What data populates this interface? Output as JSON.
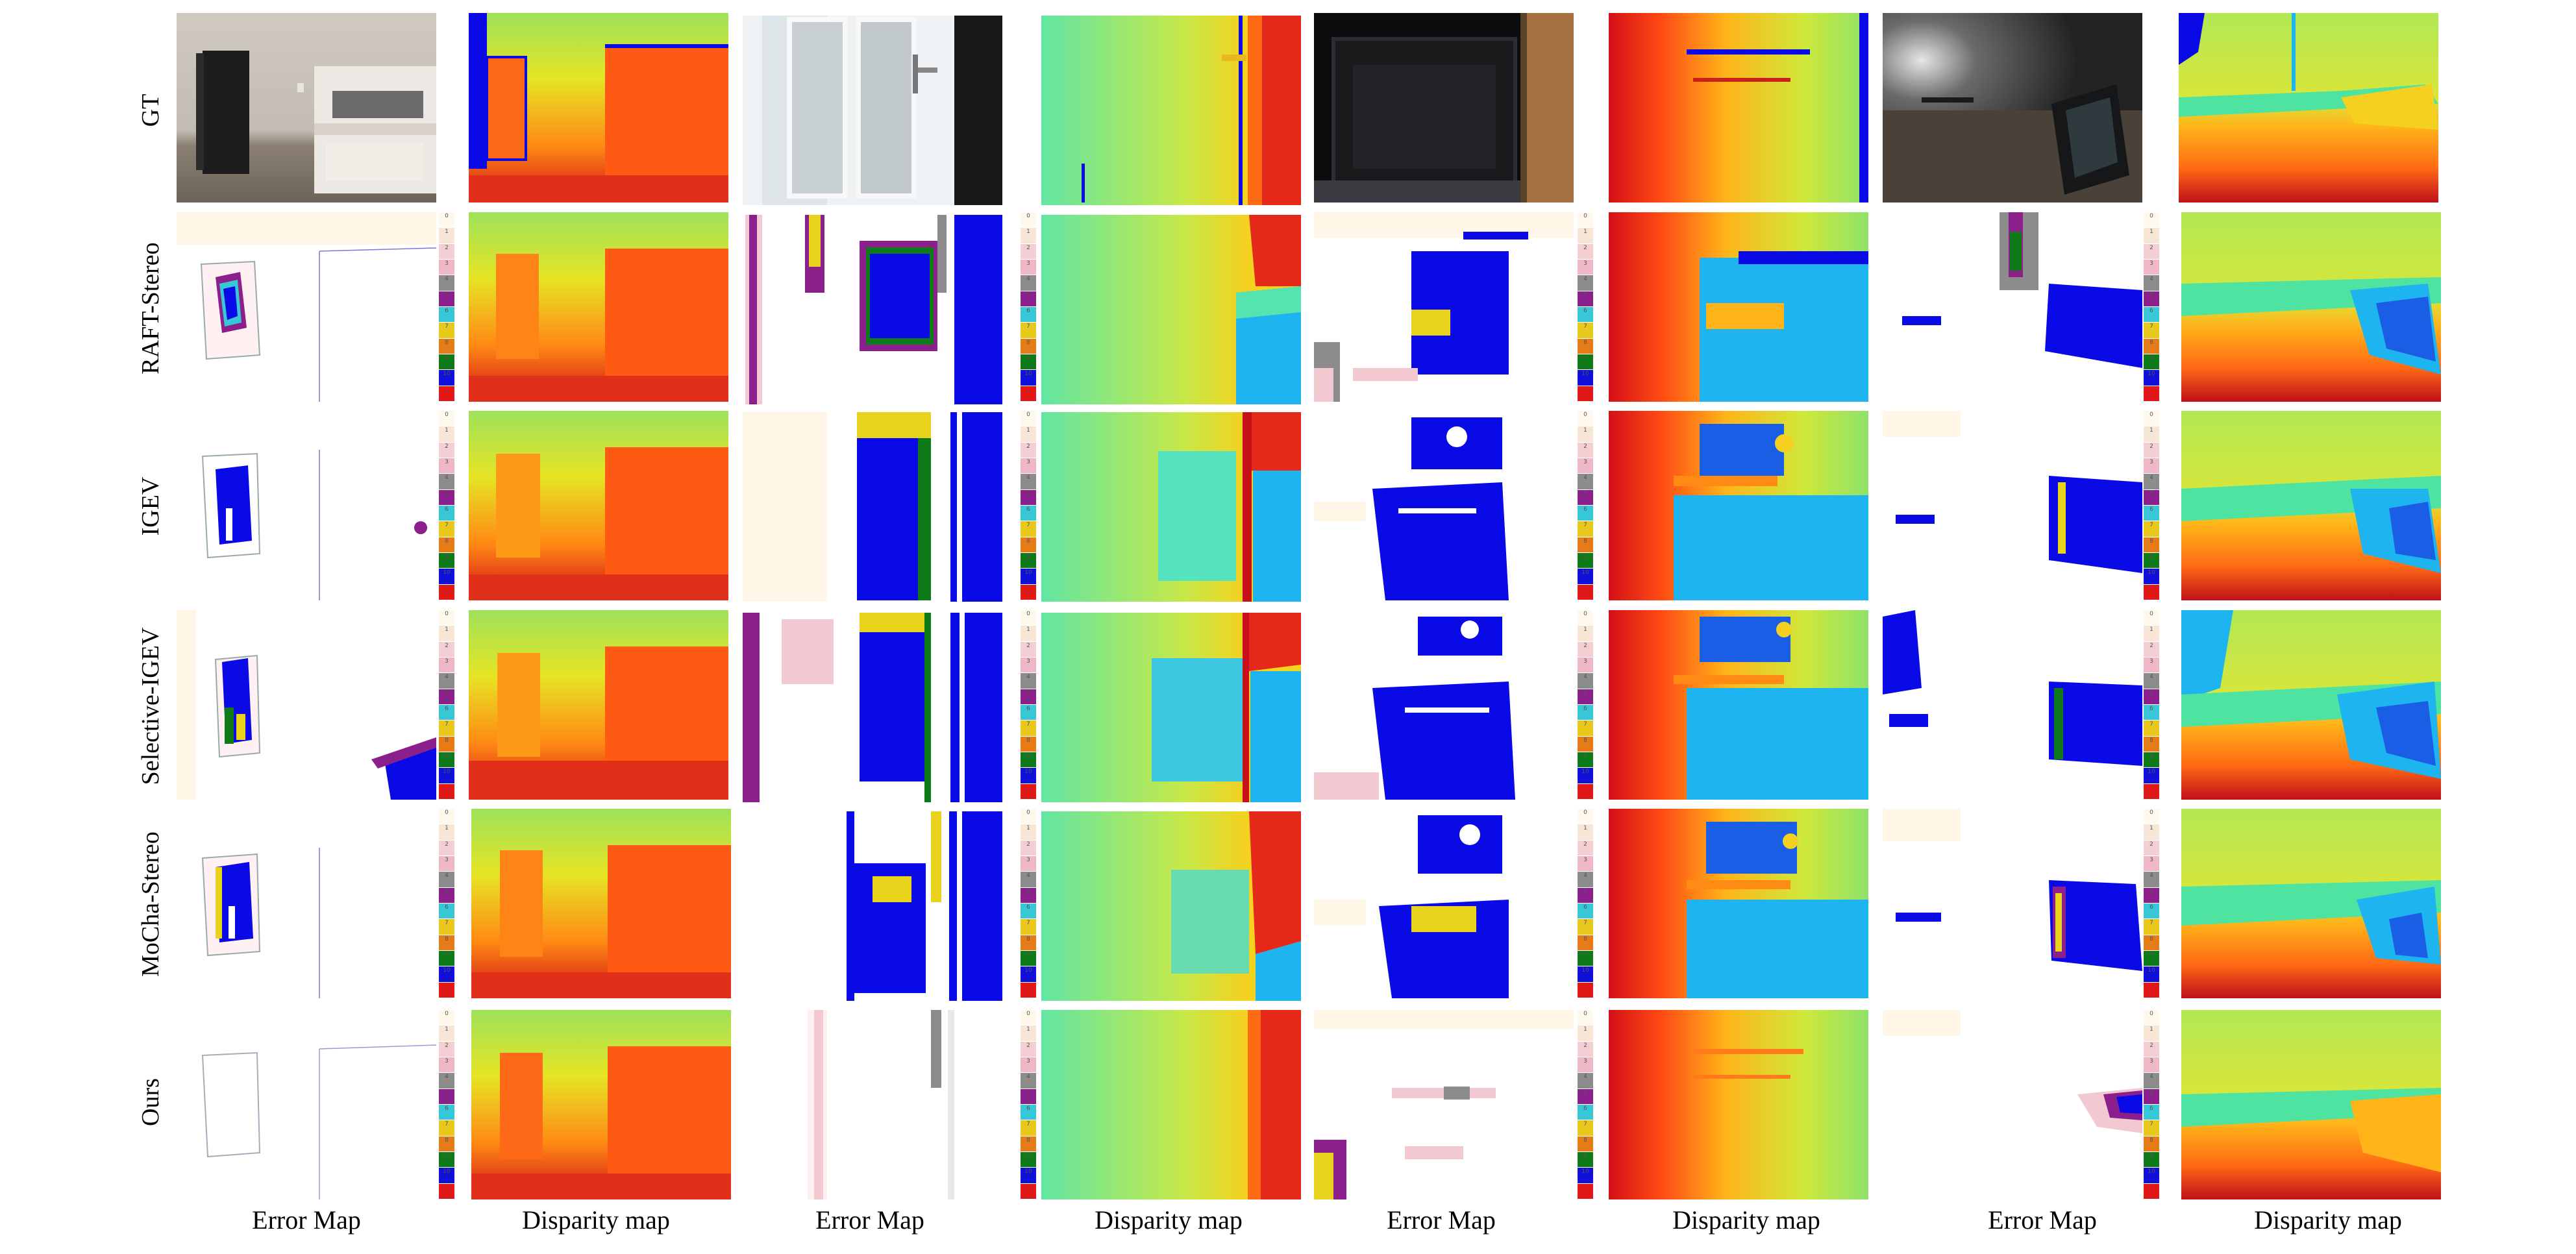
{
  "figure": {
    "row_labels": [
      "GT",
      "RAFT-Stereo",
      "IGEV",
      "Selective-IGEV",
      "MoCha-Stereo",
      "Ours"
    ],
    "column_captions": [
      "Error Map",
      "Disparity map",
      "Error Map",
      "Disparity map",
      "Error Map",
      "Disparity map",
      "Error Map",
      "Disparity map"
    ],
    "colorbar_ticks": [
      "0",
      "1",
      "2",
      "3",
      "4",
      "5",
      "6",
      "7",
      "8",
      "9",
      "10"
    ],
    "colorbar_colors": [
      "#fff8ec",
      "#f7e6d6",
      "#f3cfd3",
      "#f0b8c6",
      "#8c8c8c",
      "#8b1f8b",
      "#38c7d6",
      "#e8c81c",
      "#e67c18",
      "#0f7a1a",
      "#1010d8",
      "#e01818"
    ],
    "error_colors": {
      "low": "#fff6e8",
      "pink": "#f3c9d1",
      "gray": "#8c8c8c",
      "purple": "#8b1f8b",
      "cyan": "#38c7d6",
      "yellow": "#e8d21c",
      "green": "#0f7a1a",
      "blue": "#0a0ae6"
    },
    "disparity_colors": {
      "near": "#c80018",
      "warm": "#ff5a14",
      "orange": "#ff9a14",
      "yellow": "#f5e020",
      "mid": "#bde84a",
      "cool": "#55e3b0",
      "cyan": "#1eb4f0",
      "far": "#0a0ae6"
    }
  }
}
